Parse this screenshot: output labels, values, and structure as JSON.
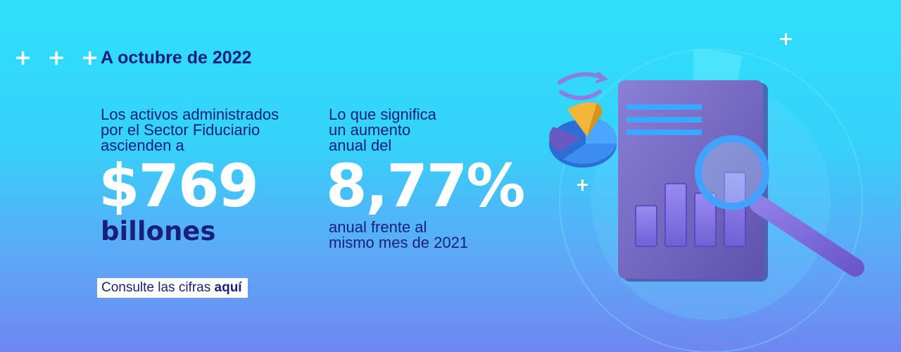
{
  "decoration": {
    "plus_marks": "+ + +"
  },
  "date_label": "A octubre de 2022",
  "assets": {
    "intro": "Los activos administrados\npor el Sector Fiduciario\nascienden a",
    "amount": "$769",
    "unit": "billones"
  },
  "growth": {
    "intro": "Lo que significa\nun aumento\nanual del",
    "percent": "8,77%",
    "subtext": "anual frente al\nmismo mes de 2021"
  },
  "cta": {
    "text": "Consulte las cifras ",
    "link": "aquí"
  },
  "illustration": {
    "icons": [
      "document-icon",
      "bar-chart-icon",
      "magnifying-glass-icon",
      "pie-chart-icon",
      "rotate-arrows-icon",
      "sparkle-icon"
    ],
    "bar_levels": [
      0.55,
      0.85,
      0.72,
      1.0
    ]
  },
  "colors": {
    "navy": "#1a1f7a",
    "cyan": "#2ee0fb",
    "violet": "#6f86f2",
    "document": "#7c6fc7",
    "white": "#ffffff"
  }
}
